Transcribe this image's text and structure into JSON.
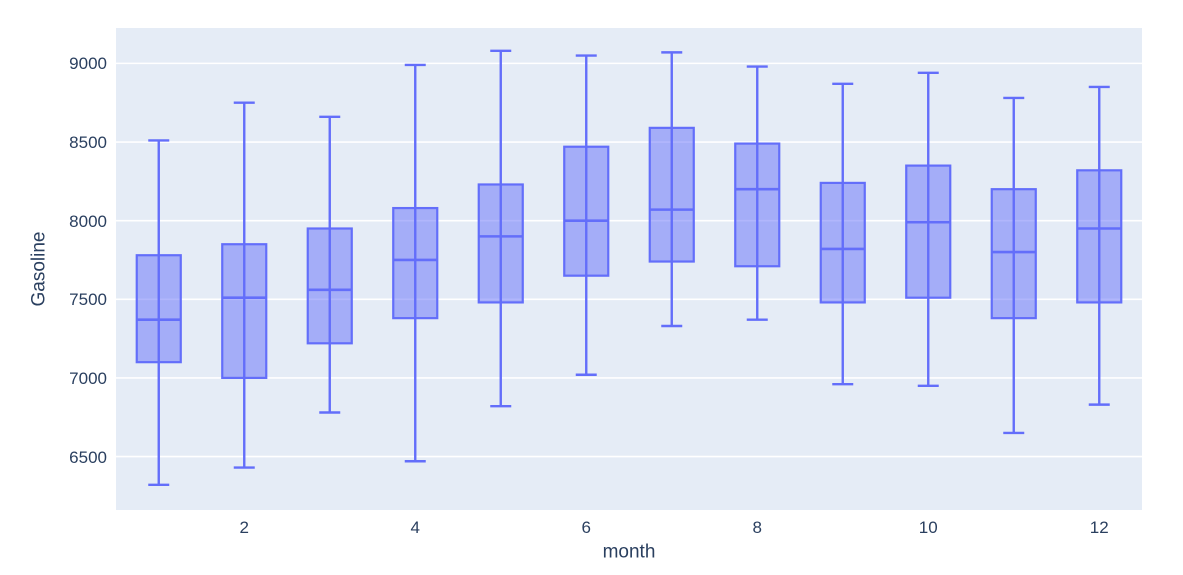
{
  "chart_data": {
    "type": "box",
    "title": "",
    "xlabel": "month",
    "ylabel": "Gasoline",
    "xlim": [
      0.5,
      12.5
    ],
    "ylim": [
      6160,
      9225
    ],
    "x_ticks": [
      2,
      4,
      6,
      8,
      10,
      12
    ],
    "y_ticks": [
      6500,
      7000,
      7500,
      8000,
      8500,
      9000
    ],
    "grid": "horizontal-only",
    "legend": "none",
    "boxes": [
      {
        "month": 1,
        "min": 6320,
        "q1": 7100,
        "median": 7370,
        "q3": 7780,
        "max": 8510
      },
      {
        "month": 2,
        "min": 6430,
        "q1": 7000,
        "median": 7510,
        "q3": 7850,
        "max": 8750
      },
      {
        "month": 3,
        "min": 6780,
        "q1": 7220,
        "median": 7560,
        "q3": 7950,
        "max": 8660
      },
      {
        "month": 4,
        "min": 6470,
        "q1": 7380,
        "median": 7750,
        "q3": 8080,
        "max": 8990
      },
      {
        "month": 5,
        "min": 6820,
        "q1": 7480,
        "median": 7900,
        "q3": 8230,
        "max": 9080
      },
      {
        "month": 6,
        "min": 7020,
        "q1": 7650,
        "median": 8000,
        "q3": 8470,
        "max": 9050
      },
      {
        "month": 7,
        "min": 7330,
        "q1": 7740,
        "median": 8070,
        "q3": 8590,
        "max": 9070
      },
      {
        "month": 8,
        "min": 7370,
        "q1": 7710,
        "median": 8200,
        "q3": 8490,
        "max": 8980
      },
      {
        "month": 9,
        "min": 6960,
        "q1": 7480,
        "median": 7820,
        "q3": 8240,
        "max": 8870
      },
      {
        "month": 10,
        "min": 6950,
        "q1": 7510,
        "median": 7990,
        "q3": 8350,
        "max": 8940
      },
      {
        "month": 11,
        "min": 6650,
        "q1": 7380,
        "median": 7800,
        "q3": 8200,
        "max": 8780
      },
      {
        "month": 12,
        "min": 6830,
        "q1": 7480,
        "median": 7950,
        "q3": 8320,
        "max": 8850
      }
    ],
    "colors": {
      "plot_background": "#e5ecf6",
      "grid_line": "#ffffff",
      "box_line": "#636efa",
      "box_fill": "rgba(99,110,250,0.5)",
      "tick_label": "#2a3f5f"
    }
  }
}
